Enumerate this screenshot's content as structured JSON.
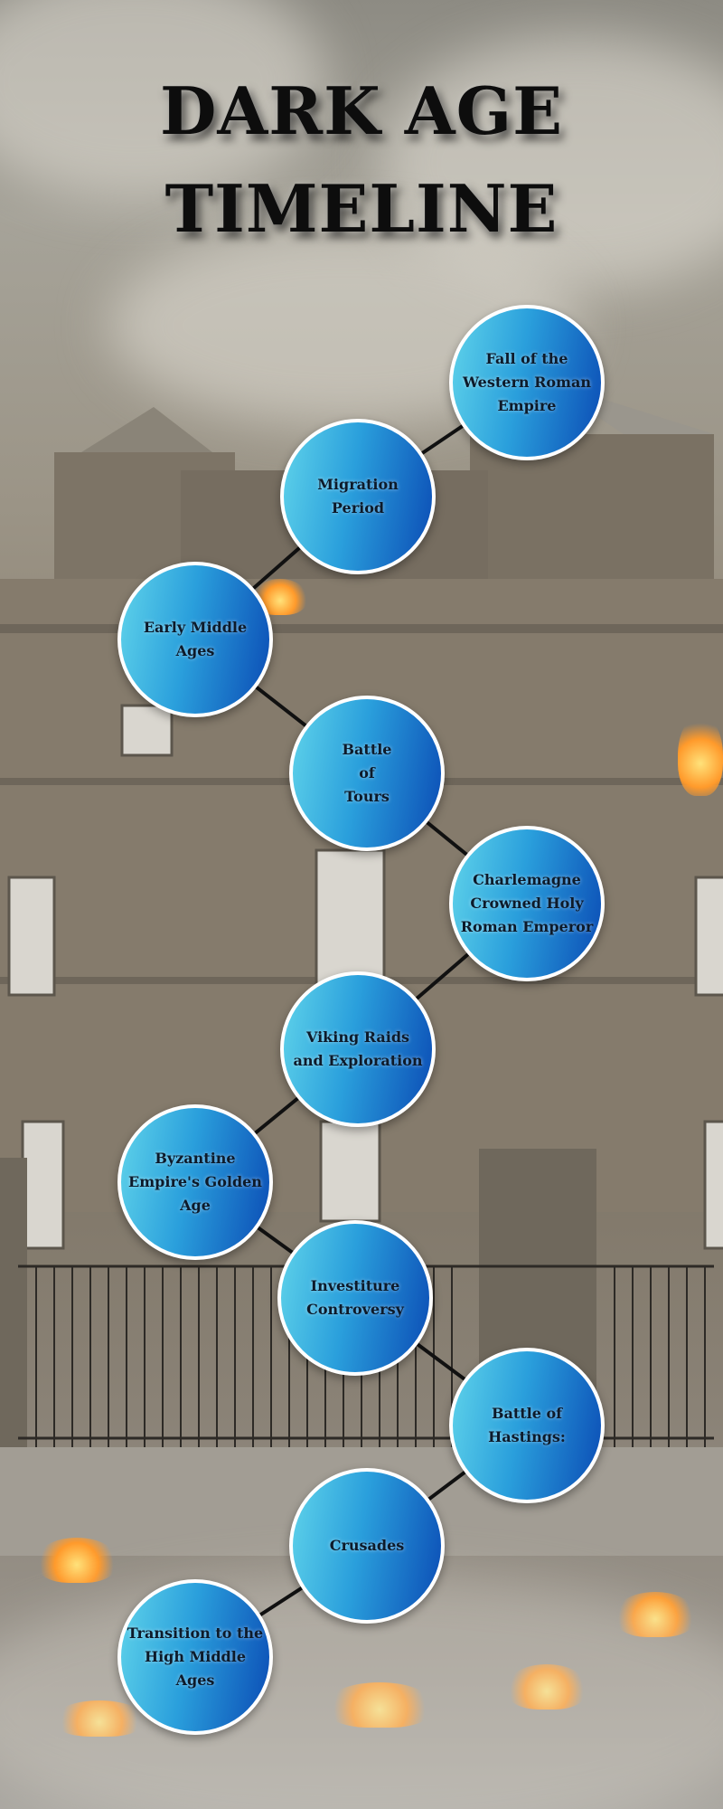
{
  "title": {
    "line1": "DARK AGE",
    "line2": "TIMELINE"
  },
  "events": [
    {
      "label": "Fall of the\nWestern Roman\nEmpire"
    },
    {
      "label": "Migration\nPeriod"
    },
    {
      "label": "Early Middle\nAges"
    },
    {
      "label": "Battle\nof\nTours"
    },
    {
      "label": "Charlemagne\nCrowned Holy\nRoman Emperor"
    },
    {
      "label": "Viking Raids\nand Exploration"
    },
    {
      "label": "Byzantine\nEmpire's Golden\nAge"
    },
    {
      "label": "Investiture\nControversy"
    },
    {
      "label": "Battle of\nHastings:"
    },
    {
      "label": "Crusades"
    },
    {
      "label": "Transition to the\nHigh Middle\nAges"
    }
  ],
  "colors": {
    "node_start": "#5fd3ea",
    "node_end": "#0b4cb5",
    "connector": "#111111",
    "title": "#0d0d0d"
  }
}
